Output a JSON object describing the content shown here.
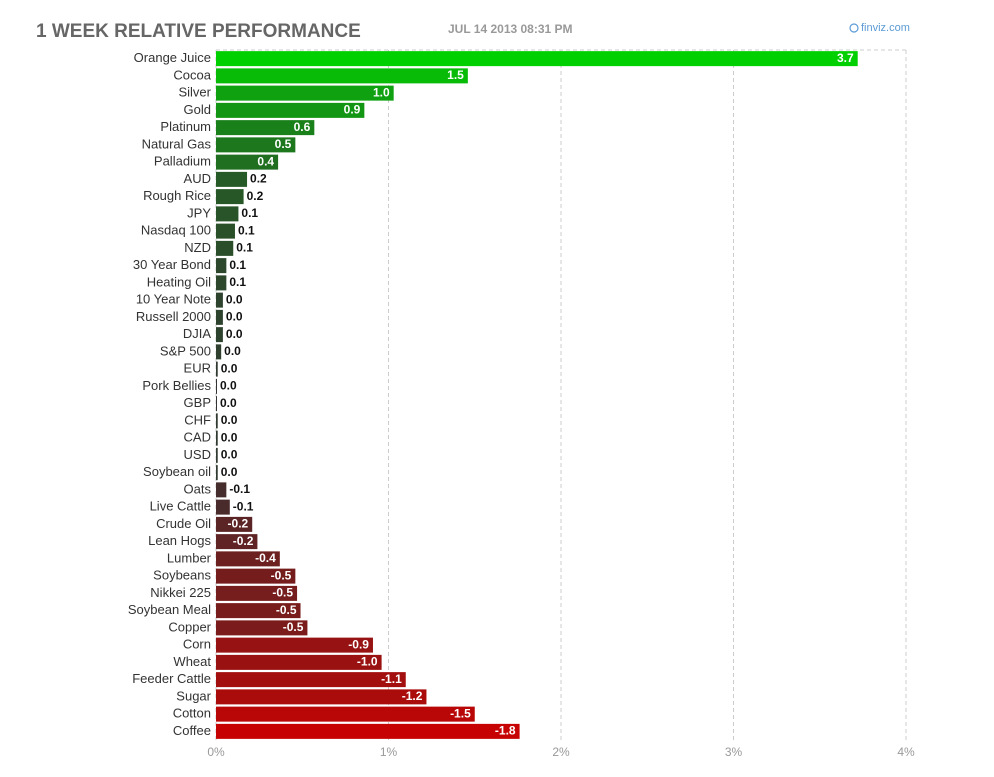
{
  "chart_data": {
    "type": "bar",
    "orientation": "horizontal",
    "title": "1 WEEK RELATIVE PERFORMANCE",
    "subtitle": "JUL 14 2013 08:31 PM",
    "source": "finviz.com",
    "categories": [
      "Orange Juice",
      "Cocoa",
      "Silver",
      "Gold",
      "Platinum",
      "Natural Gas",
      "Palladium",
      "AUD",
      "Rough Rice",
      "JPY",
      "Nasdaq 100",
      "NZD",
      "30 Year Bond",
      "Heating Oil",
      "10 Year Note",
      "Russell 2000",
      "DJIA",
      "S&P 500",
      "EUR",
      "Pork Bellies",
      "GBP",
      "CHF",
      "CAD",
      "USD",
      "Soybean oil",
      "Oats",
      "Live Cattle",
      "Crude Oil",
      "Lean Hogs",
      "Lumber",
      "Soybeans",
      "Nikkei 225",
      "Soybean Meal",
      "Copper",
      "Corn",
      "Wheat",
      "Feeder Cattle",
      "Sugar",
      "Cotton",
      "Coffee"
    ],
    "values": [
      3.72,
      1.46,
      1.03,
      0.86,
      0.57,
      0.46,
      0.36,
      0.18,
      0.16,
      0.13,
      0.11,
      0.1,
      0.06,
      0.06,
      0.04,
      0.04,
      0.04,
      0.03,
      0.01,
      0,
      0,
      0.01,
      0.01,
      0.01,
      0.01,
      -0.06,
      -0.08,
      -0.21,
      -0.24,
      -0.37,
      -0.46,
      -0.47,
      -0.49,
      -0.53,
      -0.91,
      -0.96,
      -1.1,
      -1.22,
      -1.5,
      -1.76
    ],
    "value_labels": [
      "3.7",
      "1.5",
      "1.0",
      "0.9",
      "0.6",
      "0.5",
      "0.4",
      "0.2",
      "0.2",
      "0.1",
      "0.1",
      "0.1",
      "0.1",
      "0.1",
      "0.0",
      "0.0",
      "0.0",
      "0.0",
      "0.0",
      "0.0",
      "0.0",
      "0.0",
      "0.0",
      "0.0",
      "0.0",
      "-0.1",
      "-0.1",
      "-0.2",
      "-0.2",
      "-0.4",
      "-0.5",
      "-0.5",
      "-0.5",
      "-0.5",
      "-0.9",
      "-1.0",
      "-1.1",
      "-1.2",
      "-1.5",
      "-1.8"
    ],
    "positive_color": "#00d000",
    "negative_color": "#cc0000",
    "neutral_color": "#333333",
    "xlim": [
      0,
      4
    ],
    "xticks": [
      {
        "value": 0,
        "label": "0%"
      },
      {
        "value": 1,
        "label": "1%"
      },
      {
        "value": 2,
        "label": "2%"
      },
      {
        "value": 3,
        "label": "3%"
      },
      {
        "value": 4,
        "label": "4%"
      }
    ],
    "grid": true
  }
}
